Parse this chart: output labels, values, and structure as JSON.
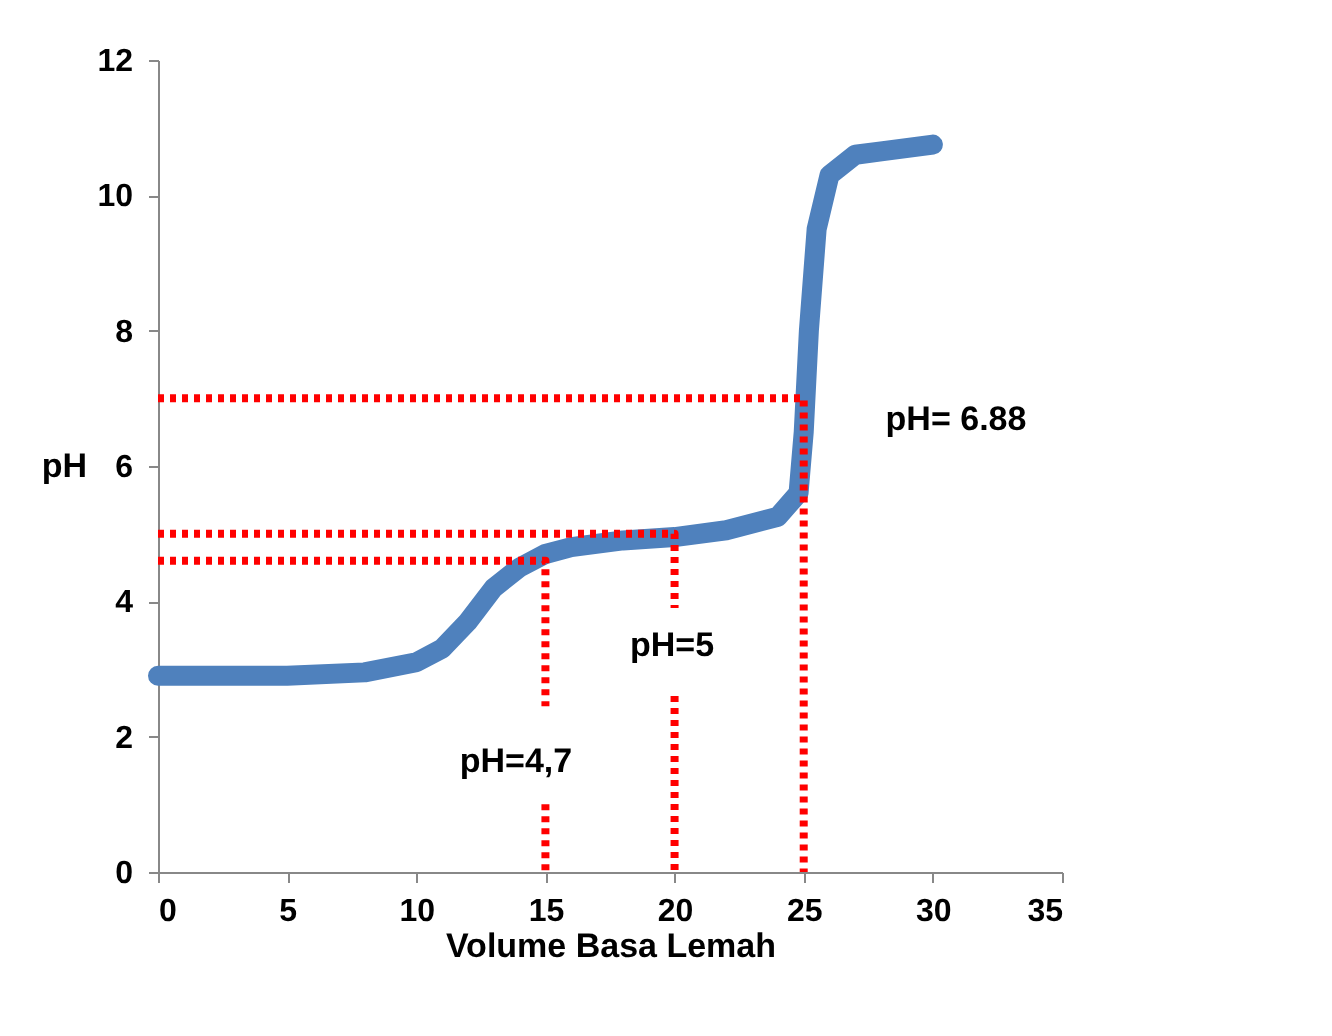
{
  "chart_data": {
    "type": "line",
    "xlabel": "Volume Basa Lemah",
    "ylabel": "pH",
    "xlim": [
      0,
      35
    ],
    "xticks": [
      0,
      5,
      10,
      15,
      20,
      25,
      30,
      35
    ],
    "ylim": [
      0,
      12
    ],
    "yticks": [
      0,
      2,
      4,
      6,
      8,
      10,
      12
    ],
    "grid": false,
    "series": [
      {
        "color": "#4f81bd",
        "line_style": "solid",
        "x": [
          0,
          2,
          5,
          8,
          10,
          11,
          12,
          13,
          14,
          15,
          16,
          18,
          20,
          22,
          24,
          24.8,
          25,
          25.2,
          25.5,
          26,
          27,
          28,
          30
        ],
        "values": [
          2.9,
          2.9,
          2.9,
          2.95,
          3.1,
          3.3,
          3.7,
          4.2,
          4.5,
          4.7,
          4.8,
          4.9,
          4.95,
          5.05,
          5.25,
          5.6,
          6.5,
          8,
          9.5,
          10.3,
          10.6,
          10.65,
          10.75
        ]
      },
      {
        "color": "#ff0000",
        "line_style": "dotted",
        "x": [
          0,
          25,
          25
        ],
        "values": [
          7,
          7,
          0
        ]
      },
      {
        "color": "#ff0000",
        "line_style": "dotted",
        "x": [
          0,
          20,
          20
        ],
        "values": [
          5,
          5,
          3.9
        ]
      },
      {
        "color": "#ff0000",
        "line_style": "dotted",
        "x": [
          20,
          20
        ],
        "values": [
          2.6,
          0
        ]
      },
      {
        "color": "#ff0000",
        "line_style": "dotted",
        "x": [
          0,
          15,
          15
        ],
        "values": [
          4.6,
          4.6,
          2.45
        ]
      },
      {
        "color": "#ff0000",
        "line_style": "dotted",
        "x": [
          15,
          15
        ],
        "values": [
          1.0,
          0
        ]
      }
    ],
    "annotations": [
      "pH= 6.88",
      "pH=5",
      "pH=4,7"
    ]
  }
}
